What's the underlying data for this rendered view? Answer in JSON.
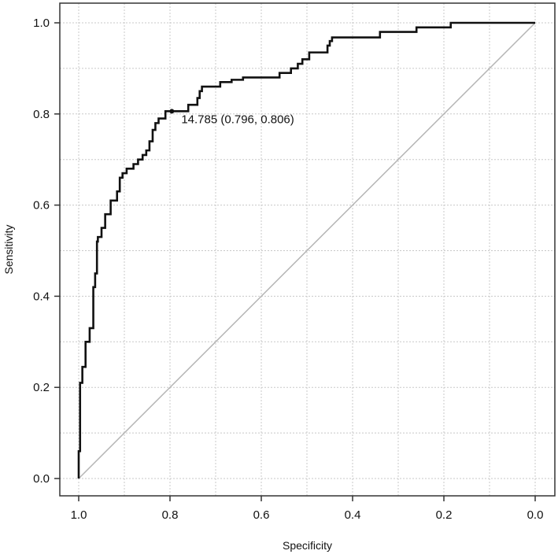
{
  "chart_data": {
    "type": "line",
    "title": "",
    "xlabel": "Specificity",
    "ylabel": "Sensitivity",
    "xlim": [
      1.0,
      0.0
    ],
    "ylim": [
      0.0,
      1.0
    ],
    "x_ticks": [
      "1.0",
      "0.8",
      "0.6",
      "0.4",
      "0.2",
      "0.0"
    ],
    "y_ticks": [
      "0.0",
      "0.2",
      "0.4",
      "0.6",
      "0.8",
      "1.0"
    ],
    "grid": true,
    "legend": "none",
    "colors": {
      "roc": "#111111",
      "diagonal": "#b5b5b5",
      "grid": "#c8c8c8"
    },
    "series": [
      {
        "name": "",
        "x": [
          1.0,
          1.0,
          0.997,
          0.997,
          0.992,
          0.992,
          0.985,
          0.985,
          0.976,
          0.976,
          0.968,
          0.968,
          0.964,
          0.964,
          0.96,
          0.96,
          0.958,
          0.958,
          0.95,
          0.95,
          0.942,
          0.942,
          0.93,
          0.93,
          0.916,
          0.916,
          0.91,
          0.91,
          0.904,
          0.904,
          0.895,
          0.895,
          0.88,
          0.88,
          0.87,
          0.87,
          0.86,
          0.86,
          0.852,
          0.852,
          0.845,
          0.845,
          0.838,
          0.838,
          0.832,
          0.832,
          0.825,
          0.825,
          0.816,
          0.816,
          0.81,
          0.81,
          0.796,
          0.796,
          0.76,
          0.76,
          0.74,
          0.74,
          0.735,
          0.735,
          0.73,
          0.73,
          0.725,
          0.725,
          0.72,
          0.72,
          0.69,
          0.69,
          0.665,
          0.665,
          0.64,
          0.64,
          0.56,
          0.56,
          0.535,
          0.535,
          0.52,
          0.52,
          0.51,
          0.51,
          0.495,
          0.495,
          0.455,
          0.455,
          0.45,
          0.45,
          0.445,
          0.445,
          0.41,
          0.41,
          0.34,
          0.34,
          0.26,
          0.26,
          0.185,
          0.185,
          0.0
        ],
        "y": [
          0.0,
          0.06,
          0.06,
          0.21,
          0.21,
          0.245,
          0.245,
          0.3,
          0.3,
          0.33,
          0.33,
          0.42,
          0.42,
          0.45,
          0.45,
          0.52,
          0.52,
          0.53,
          0.53,
          0.55,
          0.55,
          0.58,
          0.58,
          0.61,
          0.61,
          0.63,
          0.63,
          0.66,
          0.66,
          0.67,
          0.67,
          0.68,
          0.68,
          0.69,
          0.69,
          0.7,
          0.7,
          0.71,
          0.71,
          0.72,
          0.72,
          0.74,
          0.74,
          0.765,
          0.765,
          0.78,
          0.78,
          0.79,
          0.79,
          0.79,
          0.79,
          0.806,
          0.806,
          0.806,
          0.806,
          0.82,
          0.82,
          0.835,
          0.835,
          0.85,
          0.85,
          0.86,
          0.86,
          0.86,
          0.86,
          0.86,
          0.86,
          0.87,
          0.87,
          0.875,
          0.875,
          0.88,
          0.88,
          0.89,
          0.89,
          0.9,
          0.9,
          0.91,
          0.91,
          0.92,
          0.92,
          0.935,
          0.935,
          0.95,
          0.95,
          0.96,
          0.96,
          0.968,
          0.968,
          0.968,
          0.968,
          0.98,
          0.98,
          0.99,
          0.99,
          1.0,
          1.0
        ]
      }
    ],
    "diagonal": {
      "x": [
        1.0,
        0.0
      ],
      "y": [
        0.0,
        1.0
      ]
    },
    "annotations": [
      {
        "text": "14.785 (0.796, 0.806)",
        "x": 0.796,
        "y": 0.806
      }
    ]
  }
}
